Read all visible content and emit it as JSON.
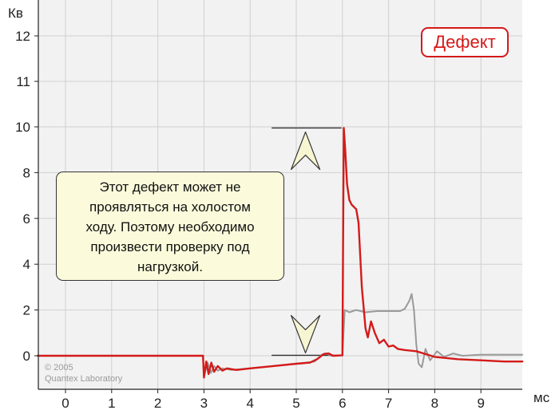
{
  "chart_data": {
    "type": "line",
    "title": "",
    "ylabel": "Кв",
    "xlabel": "мс",
    "xlim": [
      -0.6,
      9.9
    ],
    "y_ticks": [
      {
        "label": "0",
        "value": 0
      },
      {
        "label": "2",
        "value": 2
      },
      {
        "label": "4",
        "value": 4
      },
      {
        "label": "6",
        "value": 6
      },
      {
        "label": "8",
        "value": 8
      },
      {
        "label": "10",
        "value": 10
      },
      {
        "label": "11",
        "value": 11
      },
      {
        "label": "12",
        "value": 12
      }
    ],
    "x_ticks": [
      "0",
      "1",
      "2",
      "3",
      "4",
      "5",
      "6",
      "7",
      "8",
      "9"
    ],
    "grid": true,
    "series": [
      {
        "color": "#9a9a9a",
        "points": [
          [
            -0.6,
            0
          ],
          [
            2.98,
            0
          ],
          [
            3.0,
            -0.9
          ],
          [
            3.08,
            -0.3
          ],
          [
            3.15,
            -0.75
          ],
          [
            3.22,
            -0.45
          ],
          [
            3.3,
            -0.65
          ],
          [
            3.4,
            -0.55
          ],
          [
            3.6,
            -0.62
          ],
          [
            4.0,
            -0.55
          ],
          [
            4.5,
            -0.45
          ],
          [
            5.0,
            -0.35
          ],
          [
            5.4,
            -0.25
          ],
          [
            5.55,
            0.05
          ],
          [
            5.65,
            0.1
          ],
          [
            5.75,
            0.0
          ],
          [
            6.0,
            0.02
          ],
          [
            6.05,
            2.0
          ],
          [
            6.15,
            1.9
          ],
          [
            6.3,
            2.0
          ],
          [
            6.5,
            1.9
          ],
          [
            6.75,
            1.95
          ],
          [
            7.0,
            1.95
          ],
          [
            7.25,
            1.95
          ],
          [
            7.35,
            2.05
          ],
          [
            7.45,
            2.4
          ],
          [
            7.5,
            2.7
          ],
          [
            7.55,
            2.0
          ],
          [
            7.6,
            0.5
          ],
          [
            7.65,
            -0.35
          ],
          [
            7.72,
            -0.5
          ],
          [
            7.8,
            0.3
          ],
          [
            7.9,
            -0.2
          ],
          [
            8.05,
            0.2
          ],
          [
            8.2,
            -0.05
          ],
          [
            8.4,
            0.1
          ],
          [
            8.6,
            0.0
          ],
          [
            9.0,
            0.05
          ],
          [
            9.9,
            0.05
          ]
        ]
      },
      {
        "color": "#d41a1a",
        "points": [
          [
            -0.6,
            0
          ],
          [
            2.98,
            0
          ],
          [
            3.0,
            -0.95
          ],
          [
            3.05,
            -0.25
          ],
          [
            3.1,
            -0.8
          ],
          [
            3.16,
            -0.3
          ],
          [
            3.22,
            -0.7
          ],
          [
            3.3,
            -0.45
          ],
          [
            3.4,
            -0.65
          ],
          [
            3.5,
            -0.55
          ],
          [
            3.7,
            -0.62
          ],
          [
            4.0,
            -0.55
          ],
          [
            4.5,
            -0.45
          ],
          [
            5.0,
            -0.35
          ],
          [
            5.3,
            -0.3
          ],
          [
            5.45,
            -0.15
          ],
          [
            5.6,
            0.08
          ],
          [
            5.7,
            0.1
          ],
          [
            5.8,
            0.0
          ],
          [
            6.0,
            0.02
          ],
          [
            6.03,
            9.95
          ],
          [
            6.06,
            9.0
          ],
          [
            6.1,
            7.5
          ],
          [
            6.15,
            6.8
          ],
          [
            6.2,
            6.6
          ],
          [
            6.3,
            6.4
          ],
          [
            6.35,
            5.8
          ],
          [
            6.42,
            3.0
          ],
          [
            6.5,
            1.2
          ],
          [
            6.55,
            0.8
          ],
          [
            6.62,
            1.5
          ],
          [
            6.7,
            1.0
          ],
          [
            6.8,
            0.55
          ],
          [
            6.9,
            0.7
          ],
          [
            7.0,
            0.4
          ],
          [
            7.1,
            0.45
          ],
          [
            7.2,
            0.3
          ],
          [
            7.35,
            0.25
          ],
          [
            7.6,
            0.2
          ],
          [
            8.0,
            -0.05
          ],
          [
            8.5,
            -0.15
          ],
          [
            9.0,
            -0.2
          ],
          [
            9.5,
            -0.25
          ],
          [
            9.9,
            -0.25
          ]
        ]
      }
    ],
    "annotation": {
      "top_level": 9.95,
      "bottom_level": 0.02,
      "x_start": 4.5,
      "x_end": 6.05,
      "arrow_x": 5.2
    }
  },
  "callout": {
    "lines": [
      "Этот дефект может не",
      "проявляться на холостом",
      "ходу. Поэтому необходимо",
      "произвести проверку под",
      "нагрузкой."
    ]
  },
  "badge": {
    "label": "Дефект"
  },
  "watermark": {
    "line1": "© 2005",
    "line2": "Quantex Laboratory"
  },
  "colors": {
    "background": "#ffffff",
    "plot_background": "#f2f2f2",
    "grid": "#d0d0d0",
    "axis": "#222222",
    "accent": "#d41a1a",
    "callout_fill": "#fbfbdc",
    "arrow_fill": "#f7f6d2"
  }
}
